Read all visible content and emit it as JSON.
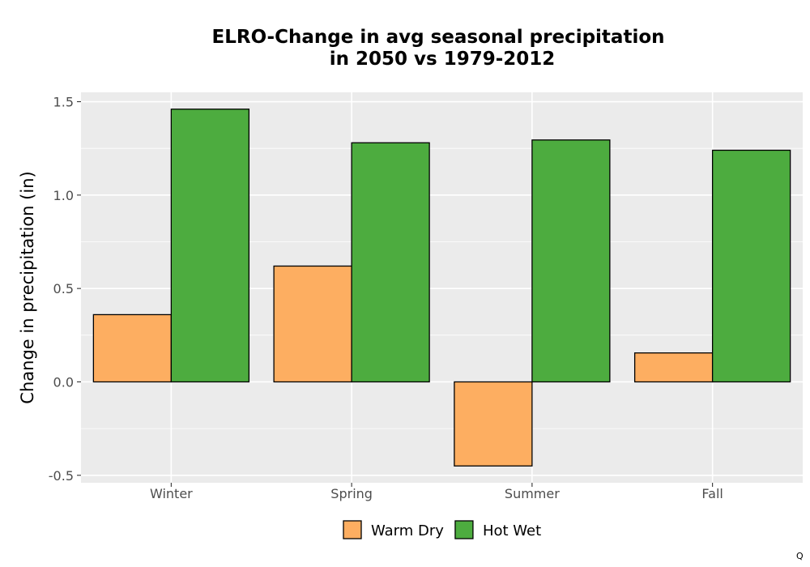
{
  "chart_data": {
    "type": "bar",
    "title_lines": [
      "ELRO-Change in avg seasonal precipitation",
      "in 2050 vs 1979-2012"
    ],
    "xlabel": "",
    "ylabel": "Change in precipitation (in)",
    "categories": [
      "Winter",
      "Spring",
      "Summer",
      "Fall"
    ],
    "series": [
      {
        "name": "Warm Dry",
        "color": "#fdae61",
        "values": [
          0.36,
          0.62,
          -0.45,
          0.155
        ]
      },
      {
        "name": "Hot Wet",
        "color": "#4dac3f",
        "values": [
          1.46,
          1.28,
          1.295,
          1.24
        ]
      }
    ],
    "ylim": [
      -0.54,
      1.55
    ],
    "yticks": [
      -0.5,
      0.0,
      0.5,
      1.0,
      1.5
    ],
    "ytick_labels": [
      "-0.5",
      "0.0",
      "0.5",
      "1.0",
      "1.5"
    ],
    "grid": true,
    "legend_position": "bottom",
    "panel_background": "#ebebeb",
    "corner_mark": "Q"
  }
}
